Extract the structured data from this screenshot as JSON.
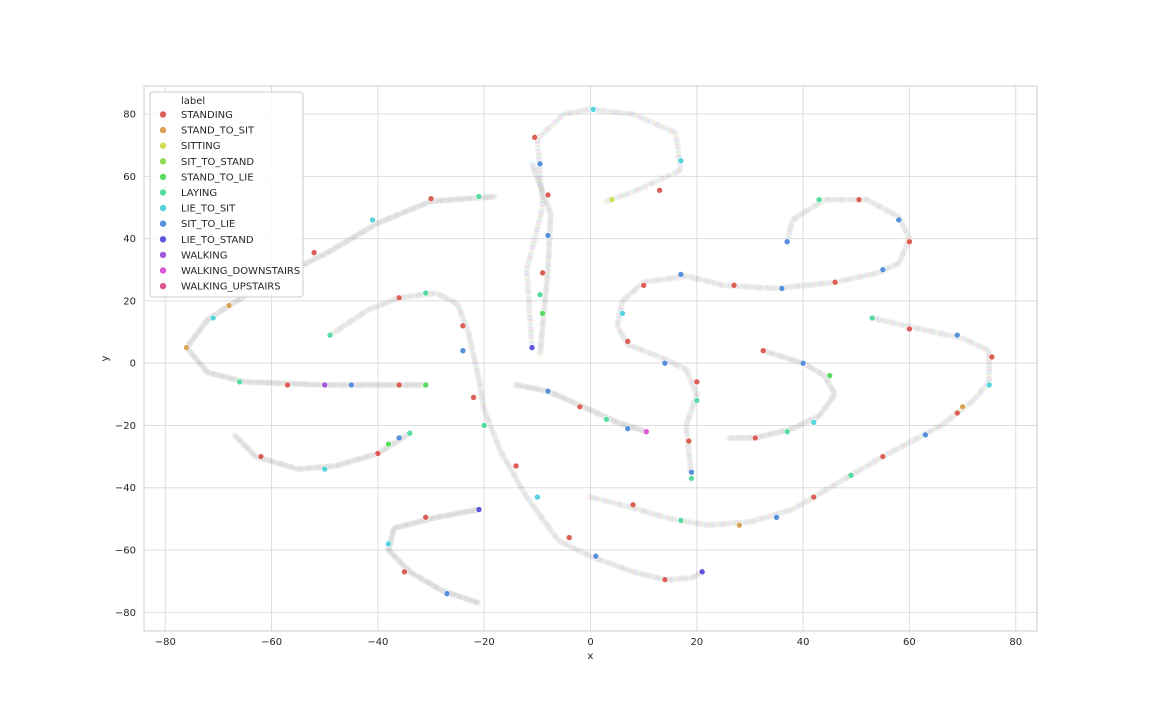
{
  "chart_data": {
    "type": "scatter",
    "xlabel": "x",
    "ylabel": "y",
    "xlim": [
      -84,
      84
    ],
    "ylim": [
      -86,
      89
    ],
    "xticks": [
      -80,
      -60,
      -40,
      -20,
      0,
      20,
      40,
      60,
      80
    ],
    "yticks": [
      -80,
      -60,
      -40,
      -20,
      0,
      20,
      40,
      60,
      80
    ],
    "grid": true,
    "legend": {
      "title": "label",
      "position": "top-left",
      "entries": [
        {
          "name": "STANDING",
          "color": "#db5f57"
        },
        {
          "name": "STAND_TO_SIT",
          "color": "#dba157"
        },
        {
          "name": "SITTING",
          "color": "#d3db57"
        },
        {
          "name": "SIT_TO_STAND",
          "color": "#91db57"
        },
        {
          "name": "STAND_TO_LIE",
          "color": "#57db5f"
        },
        {
          "name": "LAYING",
          "color": "#57dba1"
        },
        {
          "name": "LIE_TO_SIT",
          "color": "#57d3db"
        },
        {
          "name": "SIT_TO_LIE",
          "color": "#5791db"
        },
        {
          "name": "LIE_TO_STAND",
          "color": "#5f57db"
        },
        {
          "name": "WALKING",
          "color": "#a157db"
        },
        {
          "name": "WALKING_DOWNSTAIRS",
          "color": "#db57d3"
        },
        {
          "name": "WALKING_UPSTAIRS",
          "color": "#db5791"
        }
      ]
    },
    "curves": [
      {
        "path": [
          [
            -11,
            5
          ],
          [
            -12,
            30
          ],
          [
            -9,
            50
          ],
          [
            -10,
            72
          ],
          [
            -5,
            80
          ],
          [
            0,
            81.5
          ],
          [
            8,
            80
          ],
          [
            16,
            74
          ],
          [
            17,
            62
          ],
          [
            8,
            55
          ],
          [
            3,
            52
          ]
        ],
        "dense": 130
      },
      {
        "path": [
          [
            -9.5,
            3
          ],
          [
            -8,
            30
          ],
          [
            -7.5,
            48
          ],
          [
            -11,
            64
          ]
        ],
        "dense": 70
      },
      {
        "path": [
          [
            -76,
            5
          ],
          [
            -72,
            14
          ],
          [
            -62,
            25
          ],
          [
            -50,
            35
          ],
          [
            -40,
            45
          ],
          [
            -30,
            52
          ],
          [
            -18,
            53.5
          ]
        ],
        "dense": 150
      },
      {
        "path": [
          [
            -76,
            5
          ],
          [
            -72,
            -3
          ],
          [
            -65,
            -6
          ],
          [
            -50,
            -7
          ],
          [
            -40,
            -7
          ],
          [
            -31,
            -7
          ]
        ],
        "dense": 110
      },
      {
        "path": [
          [
            -49,
            9
          ],
          [
            -42,
            17
          ],
          [
            -36,
            21
          ],
          [
            -29,
            22.5
          ],
          [
            -25,
            19
          ],
          [
            -23,
            10
          ],
          [
            -21,
            -5
          ],
          [
            -20,
            -15
          ],
          [
            -17,
            -28
          ],
          [
            -12,
            -43
          ],
          [
            -6,
            -57
          ],
          [
            0,
            -62
          ],
          [
            8,
            -67
          ],
          [
            14,
            -69.5
          ],
          [
            19,
            -69
          ],
          [
            21,
            -67
          ]
        ],
        "dense": 180
      },
      {
        "path": [
          [
            -67,
            -23
          ],
          [
            -63,
            -30
          ],
          [
            -55,
            -34
          ],
          [
            -48,
            -33
          ],
          [
            -40,
            -29
          ],
          [
            -34,
            -22.5
          ]
        ],
        "dense": 80
      },
      {
        "path": [
          [
            -21,
            -47
          ],
          [
            -29,
            -49.5
          ],
          [
            -37,
            -53
          ],
          [
            -38,
            -60
          ],
          [
            -34,
            -67
          ],
          [
            -28,
            -73
          ],
          [
            -21,
            -77
          ]
        ],
        "dense": 100
      },
      {
        "path": [
          [
            -14,
            -7
          ],
          [
            -8,
            -9
          ],
          [
            0,
            -15
          ],
          [
            5,
            -19
          ],
          [
            10.5,
            -22
          ]
        ],
        "dense": 60
      },
      {
        "path": [
          [
            37,
            39
          ],
          [
            38,
            46
          ],
          [
            44,
            52.5
          ],
          [
            52,
            52.5
          ],
          [
            58,
            47
          ],
          [
            60,
            40
          ],
          [
            58,
            32
          ],
          [
            54,
            29
          ],
          [
            46,
            26
          ],
          [
            35,
            24
          ],
          [
            25,
            25
          ],
          [
            18,
            28
          ],
          [
            10,
            26
          ],
          [
            6,
            20
          ],
          [
            5,
            12
          ],
          [
            7,
            6
          ],
          [
            13,
            2
          ],
          [
            18,
            -2
          ],
          [
            20,
            -10
          ],
          [
            18,
            -20
          ],
          [
            19,
            -37
          ]
        ],
        "dense": 220
      },
      {
        "path": [
          [
            32.5,
            4
          ],
          [
            40,
            0
          ],
          [
            44,
            -4
          ],
          [
            46,
            -10
          ],
          [
            43,
            -17
          ],
          [
            38,
            -21
          ],
          [
            31,
            -24
          ],
          [
            26,
            -24
          ]
        ],
        "dense": 80
      },
      {
        "path": [
          [
            53,
            14.5
          ],
          [
            62,
            11
          ],
          [
            70,
            8
          ],
          [
            75,
            4
          ],
          [
            75,
            -6
          ],
          [
            72,
            -12
          ],
          [
            66,
            -20
          ],
          [
            55,
            -30
          ],
          [
            45,
            -40
          ],
          [
            38,
            -47
          ],
          [
            30,
            -51
          ],
          [
            22,
            -52
          ],
          [
            15,
            -50
          ],
          [
            7,
            -46
          ],
          [
            0,
            -43
          ]
        ],
        "dense": 180
      }
    ],
    "markers": [
      {
        "x": -71,
        "y": 14.5,
        "label": "LIE_TO_SIT"
      },
      {
        "x": -68,
        "y": 18.5,
        "label": "STAND_TO_SIT"
      },
      {
        "x": -52,
        "y": 35.5,
        "label": "STANDING"
      },
      {
        "x": -41,
        "y": 46,
        "label": "LIE_TO_SIT"
      },
      {
        "x": -30,
        "y": 52.8,
        "label": "STANDING"
      },
      {
        "x": -21,
        "y": 53.5,
        "label": "LAYING"
      },
      {
        "x": -10.5,
        "y": 72.5,
        "label": "STANDING"
      },
      {
        "x": -9.5,
        "y": 64,
        "label": "SIT_TO_LIE"
      },
      {
        "x": 0.5,
        "y": 81.5,
        "label": "LIE_TO_SIT"
      },
      {
        "x": 17,
        "y": 65,
        "label": "LIE_TO_SIT"
      },
      {
        "x": 4,
        "y": 52.5,
        "label": "SITTING"
      },
      {
        "x": 13,
        "y": 55.5,
        "label": "STANDING"
      },
      {
        "x": -8,
        "y": 54,
        "label": "STANDING"
      },
      {
        "x": -8,
        "y": 41,
        "label": "SIT_TO_LIE"
      },
      {
        "x": -9,
        "y": 29,
        "label": "STANDING"
      },
      {
        "x": -9.5,
        "y": 22,
        "label": "LAYING"
      },
      {
        "x": -9,
        "y": 16,
        "label": "STAND_TO_LIE"
      },
      {
        "x": -11,
        "y": 5,
        "label": "LIE_TO_STAND"
      },
      {
        "x": -76,
        "y": 5,
        "label": "STAND_TO_SIT"
      },
      {
        "x": -66,
        "y": -6,
        "label": "LAYING"
      },
      {
        "x": -57,
        "y": -7,
        "label": "STANDING"
      },
      {
        "x": -50,
        "y": -7,
        "label": "WALKING"
      },
      {
        "x": -45,
        "y": -7,
        "label": "SIT_TO_LIE"
      },
      {
        "x": -36,
        "y": -7,
        "label": "STANDING"
      },
      {
        "x": -31,
        "y": -7,
        "label": "STAND_TO_LIE"
      },
      {
        "x": -49,
        "y": 9,
        "label": "LAYING"
      },
      {
        "x": -36,
        "y": 21,
        "label": "STANDING"
      },
      {
        "x": -31,
        "y": 22.5,
        "label": "LAYING"
      },
      {
        "x": -24,
        "y": 12,
        "label": "STANDING"
      },
      {
        "x": -24,
        "y": 4,
        "label": "SIT_TO_LIE"
      },
      {
        "x": -22,
        "y": -11,
        "label": "STANDING"
      },
      {
        "x": -20,
        "y": -20,
        "label": "LAYING"
      },
      {
        "x": -14,
        "y": -33,
        "label": "STANDING"
      },
      {
        "x": -10,
        "y": -43,
        "label": "LIE_TO_SIT"
      },
      {
        "x": -4,
        "y": -56,
        "label": "STANDING"
      },
      {
        "x": 1,
        "y": -62,
        "label": "SIT_TO_LIE"
      },
      {
        "x": 14,
        "y": -69.5,
        "label": "STANDING"
      },
      {
        "x": 21,
        "y": -67,
        "label": "LIE_TO_STAND"
      },
      {
        "x": -62,
        "y": -30,
        "label": "STANDING"
      },
      {
        "x": -50,
        "y": -34,
        "label": "LIE_TO_SIT"
      },
      {
        "x": -40,
        "y": -29,
        "label": "STANDING"
      },
      {
        "x": -38,
        "y": -26,
        "label": "STAND_TO_LIE"
      },
      {
        "x": -36,
        "y": -24,
        "label": "SIT_TO_LIE"
      },
      {
        "x": -34,
        "y": -22.5,
        "label": "LAYING"
      },
      {
        "x": -21,
        "y": -47,
        "label": "LIE_TO_STAND"
      },
      {
        "x": -31,
        "y": -49.5,
        "label": "STANDING"
      },
      {
        "x": -38,
        "y": -58,
        "label": "LIE_TO_SIT"
      },
      {
        "x": -35,
        "y": -67,
        "label": "STANDING"
      },
      {
        "x": -27,
        "y": -74,
        "label": "SIT_TO_LIE"
      },
      {
        "x": -8,
        "y": -9,
        "label": "SIT_TO_LIE"
      },
      {
        "x": -2,
        "y": -14,
        "label": "STANDING"
      },
      {
        "x": 3,
        "y": -18,
        "label": "LAYING"
      },
      {
        "x": 7,
        "y": -21,
        "label": "SIT_TO_LIE"
      },
      {
        "x": 10.5,
        "y": -22,
        "label": "WALKING_DOWNSTAIRS"
      },
      {
        "x": 37,
        "y": 39,
        "label": "SIT_TO_LIE"
      },
      {
        "x": 43,
        "y": 52.5,
        "label": "LAYING"
      },
      {
        "x": 50.5,
        "y": 52.5,
        "label": "STANDING"
      },
      {
        "x": 58,
        "y": 46,
        "label": "SIT_TO_LIE"
      },
      {
        "x": 60,
        "y": 39,
        "label": "STANDING"
      },
      {
        "x": 55,
        "y": 30,
        "label": "SIT_TO_LIE"
      },
      {
        "x": 46,
        "y": 26,
        "label": "STANDING"
      },
      {
        "x": 36,
        "y": 24,
        "label": "SIT_TO_LIE"
      },
      {
        "x": 27,
        "y": 25,
        "label": "STANDING"
      },
      {
        "x": 17,
        "y": 28.5,
        "label": "SIT_TO_LIE"
      },
      {
        "x": 10,
        "y": 25,
        "label": "STANDING"
      },
      {
        "x": 6,
        "y": 16,
        "label": "LIE_TO_SIT"
      },
      {
        "x": 7,
        "y": 7,
        "label": "STANDING"
      },
      {
        "x": 14,
        "y": 0,
        "label": "SIT_TO_LIE"
      },
      {
        "x": 20,
        "y": -6,
        "label": "STANDING"
      },
      {
        "x": 20,
        "y": -12,
        "label": "LAYING"
      },
      {
        "x": 18.5,
        "y": -25,
        "label": "STANDING"
      },
      {
        "x": 19,
        "y": -35,
        "label": "SIT_TO_LIE"
      },
      {
        "x": 19,
        "y": -37,
        "label": "LAYING"
      },
      {
        "x": 32.5,
        "y": 4,
        "label": "STANDING"
      },
      {
        "x": 40,
        "y": 0,
        "label": "SIT_TO_LIE"
      },
      {
        "x": 45,
        "y": -4,
        "label": "STAND_TO_LIE"
      },
      {
        "x": 42,
        "y": -19,
        "label": "LIE_TO_SIT"
      },
      {
        "x": 37,
        "y": -22,
        "label": "LAYING"
      },
      {
        "x": 31,
        "y": -24,
        "label": "STANDING"
      },
      {
        "x": 53,
        "y": 14.5,
        "label": "LAYING"
      },
      {
        "x": 60,
        "y": 11,
        "label": "STANDING"
      },
      {
        "x": 69,
        "y": 9,
        "label": "SIT_TO_LIE"
      },
      {
        "x": 75.5,
        "y": 2,
        "label": "STANDING"
      },
      {
        "x": 75,
        "y": -7,
        "label": "LIE_TO_SIT"
      },
      {
        "x": 70,
        "y": -14,
        "label": "STAND_TO_SIT"
      },
      {
        "x": 69,
        "y": -16,
        "label": "STANDING"
      },
      {
        "x": 63,
        "y": -23,
        "label": "SIT_TO_LIE"
      },
      {
        "x": 55,
        "y": -30,
        "label": "STANDING"
      },
      {
        "x": 49,
        "y": -36,
        "label": "LAYING"
      },
      {
        "x": 42,
        "y": -43,
        "label": "STANDING"
      },
      {
        "x": 35,
        "y": -49.5,
        "label": "SIT_TO_LIE"
      },
      {
        "x": 28,
        "y": -52,
        "label": "STAND_TO_SIT"
      },
      {
        "x": 17,
        "y": -50.5,
        "label": "LAYING"
      },
      {
        "x": 8,
        "y": -45.5,
        "label": "STANDING"
      }
    ]
  }
}
